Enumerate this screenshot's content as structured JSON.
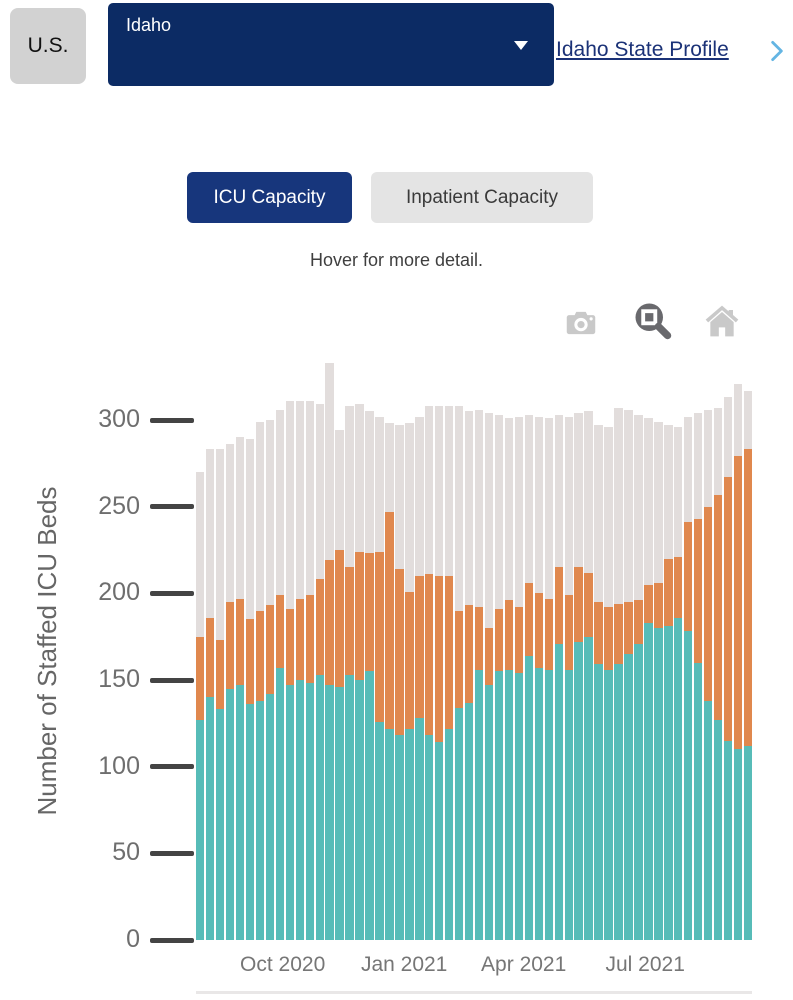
{
  "header": {
    "us_button": "U.S.",
    "state_dropdown_value": "Idaho",
    "state_profile_link": "Idaho State Profile"
  },
  "tabs": [
    {
      "label": "ICU Capacity",
      "active": true
    },
    {
      "label": "Inpatient Capacity",
      "active": false
    }
  ],
  "hint": "Hover for more detail.",
  "modebar": {
    "icons": [
      "camera-icon",
      "zoom-icon",
      "home-icon"
    ],
    "active_icon": "zoom-icon"
  },
  "colors": {
    "navy_dropdown": "#0c2b64",
    "navy_tab": "#17367c",
    "link": "#1b3277",
    "link_chevron": "#64b5e3",
    "teal": "#57bcb8",
    "orange": "#e0884e",
    "gray_bar": "#e2dddc",
    "icon_gray": "#c9c9c9",
    "icon_active": "#69696d"
  },
  "chart_data": {
    "type": "bar",
    "stacked": true,
    "title": "",
    "xlabel": "",
    "ylabel": "Number of Staffed ICU Beds",
    "ylim": [
      0,
      340
    ],
    "grid": false,
    "legend": "none (hover only)",
    "y_ticks": [
      0,
      50,
      100,
      150,
      200,
      250,
      300
    ],
    "x_tick_labels": [
      "Oct 2020",
      "Jan 2021",
      "Apr 2021",
      "Jul 2021"
    ],
    "x_tick_week_positions": [
      9.2,
      21.4,
      33.4,
      45.6
    ],
    "weeks": 56,
    "x": [
      1,
      2,
      3,
      4,
      5,
      6,
      7,
      8,
      9,
      10,
      11,
      12,
      13,
      14,
      15,
      16,
      17,
      18,
      19,
      20,
      21,
      22,
      23,
      24,
      25,
      26,
      27,
      28,
      29,
      30,
      31,
      32,
      33,
      34,
      35,
      36,
      37,
      38,
      39,
      40,
      41,
      42,
      43,
      44,
      45,
      46,
      47,
      48,
      49,
      50,
      51,
      52,
      53,
      54,
      55,
      56
    ],
    "series": [
      {
        "name": "teal-bottom-segment",
        "color": "#57bcb8",
        "values": [
          127,
          140,
          133,
          145,
          147,
          136,
          138,
          142,
          157,
          147,
          150,
          148,
          153,
          147,
          146,
          153,
          150,
          155,
          126,
          122,
          118,
          122,
          128,
          118,
          114,
          122,
          134,
          137,
          156,
          147,
          155,
          156,
          154,
          164,
          157,
          156,
          171,
          156,
          172,
          175,
          159,
          156,
          159,
          165,
          171,
          183,
          180,
          181,
          186,
          178,
          160,
          138,
          127,
          115,
          110,
          112
        ]
      },
      {
        "name": "orange-middle-segment",
        "color": "#e0884e",
        "values": [
          48,
          46,
          40,
          50,
          50,
          49,
          52,
          51,
          42,
          44,
          47,
          51,
          55,
          72,
          79,
          62,
          74,
          68,
          98,
          125,
          96,
          79,
          82,
          93,
          96,
          88,
          56,
          56,
          36,
          33,
          36,
          40,
          38,
          42,
          43,
          41,
          44,
          43,
          43,
          37,
          36,
          36,
          35,
          30,
          25,
          22,
          26,
          39,
          35,
          63,
          83,
          112,
          130,
          152,
          169,
          171
        ]
      },
      {
        "name": "gray-top-segment",
        "color": "#e2dddc",
        "values": [
          95,
          97,
          110,
          91,
          93,
          104,
          109,
          107,
          107,
          120,
          114,
          112,
          101,
          114,
          69,
          93,
          85,
          82,
          78,
          51,
          83,
          97,
          92,
          97,
          98,
          98,
          118,
          112,
          114,
          124,
          112,
          105,
          110,
          97,
          102,
          104,
          88,
          103,
          89,
          93,
          102,
          104,
          113,
          111,
          107,
          96,
          93,
          77,
          75,
          61,
          61,
          56,
          50,
          46,
          42,
          34
        ]
      }
    ]
  }
}
